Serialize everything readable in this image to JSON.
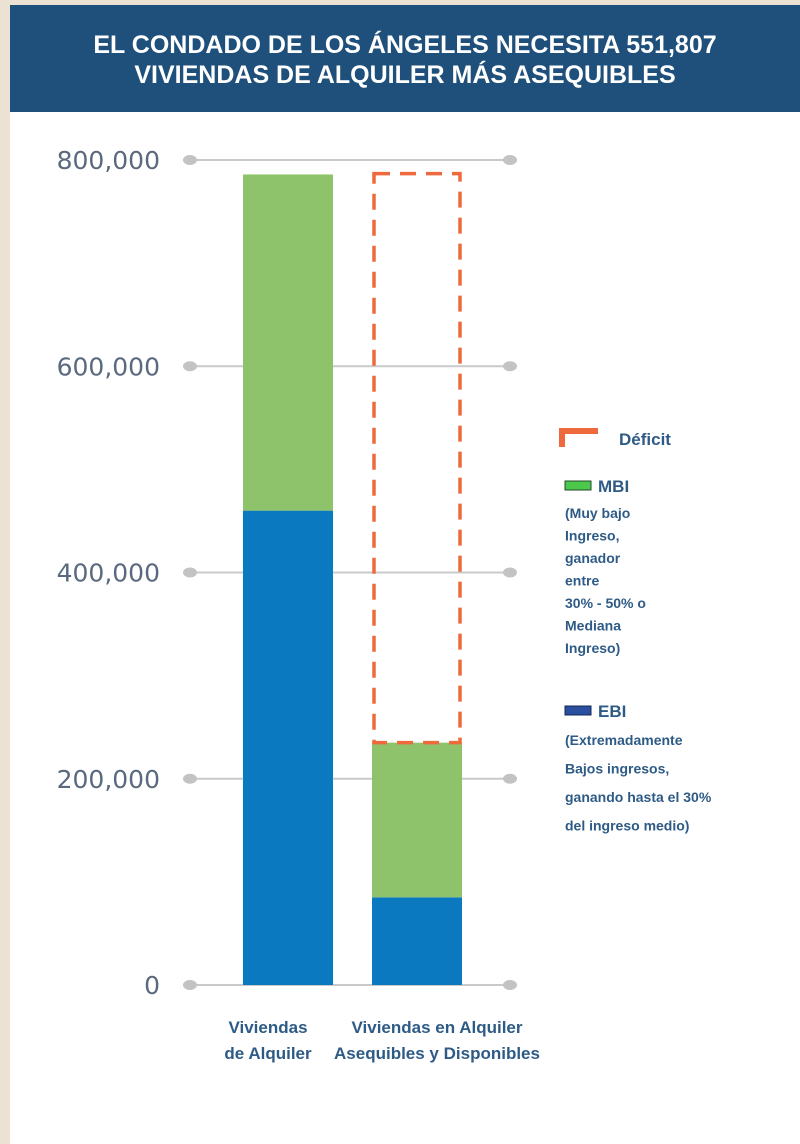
{
  "chart_data": {
    "type": "bar",
    "stacked": true,
    "title_lines": [
      "EL CONDADO DE LOS ÁNGELES NECESITA 551,807",
      "VIVIENDAS DE ALQUILER MÁS ASEQUIBLES"
    ],
    "categories": [
      "Viviendas de Alquiler",
      "Viviendas en Alquiler Asequibles y Disponibles"
    ],
    "category_label_lines": [
      [
        "Viviendas",
        "de Alquiler"
      ],
      [
        "Viviendas en Alquiler",
        "Asequibles y Disponibles"
      ]
    ],
    "series": [
      {
        "name": "EBI",
        "values": [
          460000,
          85000
        ],
        "color": "#0a79c0"
      },
      {
        "name": "MBI",
        "values": [
          326000,
          150000
        ],
        "color": "#8fc36b"
      },
      {
        "name": "Déficit",
        "values": [
          0,
          551807
        ],
        "color": "#ee6a3c",
        "style": "dashed-outline"
      }
    ],
    "ylim": [
      0,
      800000
    ],
    "yticks": [
      0,
      200000,
      400000,
      600000,
      800000
    ],
    "ytick_labels": [
      "0",
      "200,000",
      "400,000",
      "600,000",
      "800,000"
    ],
    "grid": true,
    "legend": {
      "placement": "right",
      "items": [
        {
          "key": "deficit",
          "label": "Déficit",
          "color": "#ee6a3c",
          "description_lines": []
        },
        {
          "key": "mbi",
          "label": "MBI",
          "color": "#4cc84a",
          "description_lines": [
            "(Muy bajo",
            "Ingreso,",
            "ganador",
            "entre",
            "30% - 50% o",
            "Mediana",
            "Ingreso)"
          ]
        },
        {
          "key": "ebi",
          "label": "EBI",
          "color": "#2a4f9e",
          "description_lines": [
            "(Extremadamente",
            "Bajos ingresos,",
            "ganando hasta el 30%",
            "del ingreso medio)"
          ]
        }
      ]
    }
  }
}
